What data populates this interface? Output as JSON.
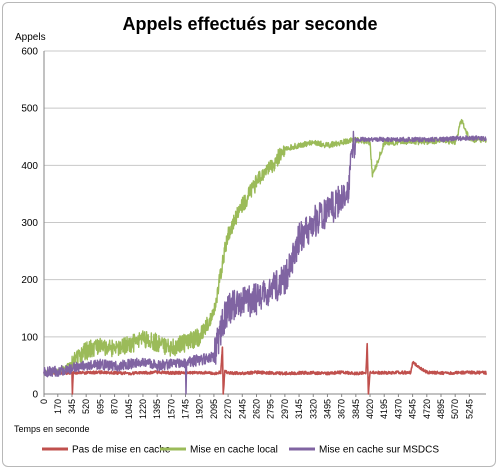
{
  "chart_data": {
    "type": "line",
    "title": "Appels effectués par seconde",
    "ylabel": "Appels",
    "xlabel": "Temps en seconde",
    "ylim": [
      0,
      600
    ],
    "yticks": [
      0,
      100,
      200,
      300,
      400,
      500,
      600
    ],
    "xlim": [
      0,
      5450
    ],
    "xticks": [
      0,
      170,
      345,
      520,
      695,
      870,
      1045,
      1220,
      1395,
      1570,
      1745,
      1920,
      2095,
      2270,
      2445,
      2620,
      2795,
      2970,
      3145,
      3320,
      3495,
      3670,
      3845,
      4020,
      4195,
      4370,
      4545,
      4720,
      4895,
      5070,
      5245
    ],
    "grid": true,
    "legend": "bottom",
    "series": [
      {
        "name": "Pas de mise en cache",
        "color": "#c0504d",
        "x": [
          0,
          170,
          345,
          350,
          360,
          520,
          695,
          870,
          1045,
          1220,
          1395,
          1570,
          1745,
          1920,
          2095,
          2180,
          2200,
          2210,
          2230,
          2270,
          2445,
          2620,
          2795,
          2970,
          3145,
          3320,
          3495,
          3670,
          3845,
          3970,
          3985,
          4000,
          4020,
          4195,
          4370,
          4520,
          4545,
          4720,
          4895,
          5070,
          5245,
          5450
        ],
        "values": [
          37,
          37,
          37,
          0,
          37,
          37,
          38,
          37,
          36,
          37,
          38,
          37,
          37,
          38,
          36,
          38,
          82,
          0,
          40,
          37,
          36,
          38,
          37,
          36,
          37,
          37,
          36,
          38,
          36,
          37,
          88,
          0,
          38,
          37,
          38,
          37,
          55,
          38,
          37,
          37,
          38,
          37
        ]
      },
      {
        "name": "Mise en cache local",
        "color": "#9bbb59",
        "x": [
          0,
          170,
          345,
          520,
          695,
          870,
          1045,
          1220,
          1395,
          1570,
          1745,
          1920,
          2095,
          2200,
          2270,
          2445,
          2620,
          2700,
          2795,
          2970,
          3145,
          3320,
          3495,
          3670,
          3845,
          4020,
          4050,
          4195,
          4370,
          4545,
          4720,
          4895,
          5070,
          5150,
          5245,
          5450
        ],
        "values": [
          38,
          40,
          55,
          75,
          85,
          80,
          85,
          95,
          90,
          80,
          90,
          100,
          140,
          230,
          280,
          330,
          370,
          385,
          395,
          430,
          435,
          440,
          435,
          440,
          445,
          440,
          380,
          440,
          440,
          442,
          440,
          445,
          440,
          480,
          445,
          445
        ]
      },
      {
        "name": "Mise en cache sur MSDCS",
        "color": "#8064a2",
        "x": [
          0,
          170,
          345,
          520,
          695,
          870,
          1045,
          1220,
          1395,
          1570,
          1745,
          1750,
          1760,
          1920,
          2095,
          2200,
          2270,
          2445,
          2620,
          2795,
          2970,
          3145,
          3320,
          3495,
          3670,
          3760,
          3780,
          3845,
          4020,
          4195,
          4370,
          4545,
          4720,
          4895,
          5070,
          5245,
          5450
        ],
        "values": [
          38,
          40,
          45,
          50,
          52,
          48,
          52,
          55,
          50,
          52,
          55,
          0,
          55,
          60,
          65,
          120,
          150,
          160,
          165,
          180,
          200,
          270,
          300,
          320,
          340,
          355,
          420,
          445,
          445,
          445,
          445,
          445,
          445,
          445,
          447,
          448,
          447
        ]
      }
    ]
  }
}
